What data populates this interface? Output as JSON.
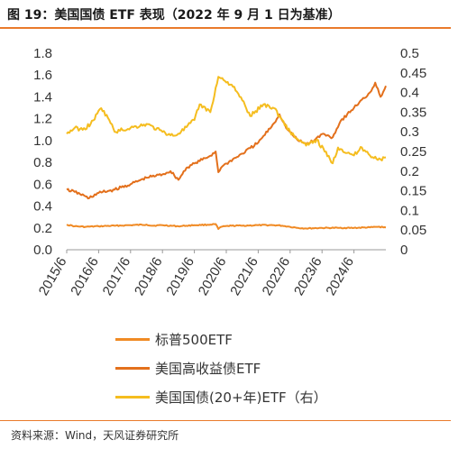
{
  "figure": {
    "title": "图 19：美国国债 ETF 表现（2022 年 9 月 1 日为基准）",
    "source": "资料来源：Wind，天风证券研究所"
  },
  "colors": {
    "accent_line": "#e97a2b",
    "series_sp500": "#f08a24",
    "series_hy": "#e3701c",
    "series_treasury": "#f5bd1f"
  },
  "chart_data": {
    "type": "line",
    "x_tick_labels": [
      "2015/6",
      "2016/6",
      "2017/6",
      "2018/6",
      "2019/6",
      "2020/6",
      "2021/6",
      "2022/6",
      "2023/6",
      "2024/6"
    ],
    "x_range": [
      "2015-06",
      "2025-06"
    ],
    "y_left": {
      "ticks": [
        "0.0",
        "0.2",
        "0.4",
        "0.6",
        "0.8",
        "1.0",
        "1.2",
        "1.4",
        "1.6",
        "1.8"
      ],
      "range": [
        0,
        1.8
      ]
    },
    "y_right": {
      "ticks": [
        "0",
        "0.05",
        "0.1",
        "0.15",
        "0.2",
        "0.25",
        "0.3",
        "0.35",
        "0.4",
        "0.45",
        "0.5"
      ],
      "range": [
        0,
        0.5
      ]
    },
    "grid": false,
    "legend_position": "bottom",
    "series": [
      {
        "name": "标普500ETF",
        "axis": "left",
        "color_key": "series_sp500",
        "points": [
          [
            "2015-06",
            0.23
          ],
          [
            "2015-09",
            0.215
          ],
          [
            "2016-01",
            0.21
          ],
          [
            "2016-06",
            0.215
          ],
          [
            "2016-12",
            0.22
          ],
          [
            "2017-06",
            0.225
          ],
          [
            "2017-12",
            0.23
          ],
          [
            "2018-02",
            0.22
          ],
          [
            "2018-06",
            0.225
          ],
          [
            "2018-12",
            0.215
          ],
          [
            "2019-03",
            0.22
          ],
          [
            "2019-06",
            0.225
          ],
          [
            "2019-12",
            0.23
          ],
          [
            "2020-02",
            0.235
          ],
          [
            "2020-03",
            0.19
          ],
          [
            "2020-04",
            0.21
          ],
          [
            "2020-08",
            0.22
          ],
          [
            "2020-12",
            0.22
          ],
          [
            "2021-06",
            0.225
          ],
          [
            "2021-12",
            0.225
          ],
          [
            "2022-03",
            0.22
          ],
          [
            "2022-06",
            0.21
          ],
          [
            "2022-09",
            0.2
          ],
          [
            "2022-12",
            0.195
          ],
          [
            "2023-06",
            0.2
          ],
          [
            "2023-12",
            0.2
          ],
          [
            "2024-06",
            0.2
          ],
          [
            "2024-12",
            0.205
          ],
          [
            "2025-03",
            0.21
          ],
          [
            "2025-06",
            0.205
          ]
        ]
      },
      {
        "name": "美国高收益债ETF",
        "axis": "left",
        "color_key": "series_hy",
        "points": [
          [
            "2015-06",
            0.55
          ],
          [
            "2015-09",
            0.53
          ],
          [
            "2016-01",
            0.49
          ],
          [
            "2016-02",
            0.47
          ],
          [
            "2016-06",
            0.52
          ],
          [
            "2016-12",
            0.55
          ],
          [
            "2017-06",
            0.6
          ],
          [
            "2017-12",
            0.66
          ],
          [
            "2018-06",
            0.69
          ],
          [
            "2018-09",
            0.72
          ],
          [
            "2018-12",
            0.64
          ],
          [
            "2019-03",
            0.75
          ],
          [
            "2019-06",
            0.79
          ],
          [
            "2019-12",
            0.86
          ],
          [
            "2020-02",
            0.9
          ],
          [
            "2020-03",
            0.71
          ],
          [
            "2020-04",
            0.75
          ],
          [
            "2020-06",
            0.79
          ],
          [
            "2020-12",
            0.88
          ],
          [
            "2021-06",
            0.98
          ],
          [
            "2021-12",
            1.16
          ],
          [
            "2022-02",
            1.24
          ],
          [
            "2022-05",
            1.1
          ],
          [
            "2022-09",
            1.0
          ],
          [
            "2022-12",
            0.97
          ],
          [
            "2023-03",
            1.0
          ],
          [
            "2023-06",
            1.06
          ],
          [
            "2023-10",
            1.03
          ],
          [
            "2024-01",
            1.18
          ],
          [
            "2024-06",
            1.3
          ],
          [
            "2024-12",
            1.44
          ],
          [
            "2025-02",
            1.53
          ],
          [
            "2025-04",
            1.4
          ],
          [
            "2025-06",
            1.5
          ]
        ]
      },
      {
        "name": "美国国债(20+年)ETF（右）",
        "axis": "right",
        "color_key": "series_treasury",
        "points": [
          [
            "2015-06",
            0.295
          ],
          [
            "2015-09",
            0.31
          ],
          [
            "2015-12",
            0.305
          ],
          [
            "2016-03",
            0.32
          ],
          [
            "2016-07",
            0.36
          ],
          [
            "2016-10",
            0.33
          ],
          [
            "2016-12",
            0.3
          ],
          [
            "2017-06",
            0.31
          ],
          [
            "2017-12",
            0.32
          ],
          [
            "2018-06",
            0.3
          ],
          [
            "2018-10",
            0.29
          ],
          [
            "2019-01",
            0.3
          ],
          [
            "2019-06",
            0.33
          ],
          [
            "2019-08",
            0.37
          ],
          [
            "2019-12",
            0.35
          ],
          [
            "2020-03",
            0.44
          ],
          [
            "2020-08",
            0.42
          ],
          [
            "2020-12",
            0.38
          ],
          [
            "2021-03",
            0.34
          ],
          [
            "2021-08",
            0.37
          ],
          [
            "2021-12",
            0.36
          ],
          [
            "2022-03",
            0.33
          ],
          [
            "2022-06",
            0.3
          ],
          [
            "2022-09",
            0.28
          ],
          [
            "2022-12",
            0.265
          ],
          [
            "2023-04",
            0.28
          ],
          [
            "2023-10",
            0.22
          ],
          [
            "2023-12",
            0.26
          ],
          [
            "2024-06",
            0.24
          ],
          [
            "2024-09",
            0.26
          ],
          [
            "2024-12",
            0.24
          ],
          [
            "2025-04",
            0.23
          ],
          [
            "2025-06",
            0.235
          ]
        ]
      }
    ]
  }
}
